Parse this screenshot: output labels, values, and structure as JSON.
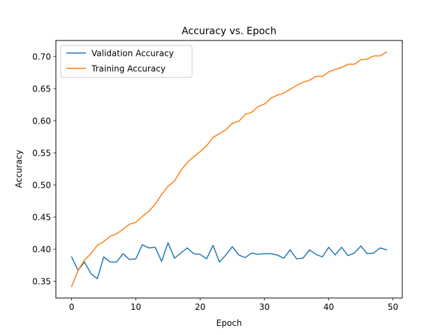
{
  "chart_data": {
    "type": "line",
    "title": "Accuracy vs. Epoch",
    "xlabel": "Epoch",
    "ylabel": "Accuracy",
    "xlim": [
      -2.45,
      51.45
    ],
    "ylim": [
      0.324,
      0.725
    ],
    "xticks": [
      0,
      10,
      20,
      30,
      40,
      50
    ],
    "yticks": [
      0.35,
      0.4,
      0.45,
      0.5,
      0.55,
      0.6,
      0.65,
      0.7
    ],
    "grid": false,
    "legend_position": "upper left",
    "x": [
      0,
      1,
      2,
      3,
      4,
      5,
      6,
      7,
      8,
      9,
      10,
      11,
      12,
      13,
      14,
      15,
      16,
      17,
      18,
      19,
      20,
      21,
      22,
      23,
      24,
      25,
      26,
      27,
      28,
      29,
      30,
      31,
      32,
      33,
      34,
      35,
      36,
      37,
      38,
      39,
      40,
      41,
      42,
      43,
      44,
      45,
      46,
      47,
      48,
      49
    ],
    "series": [
      {
        "name": "Validation Accuracy",
        "color": "#1f77b4",
        "values": [
          0.388,
          0.367,
          0.38,
          0.362,
          0.354,
          0.388,
          0.38,
          0.38,
          0.393,
          0.384,
          0.385,
          0.407,
          0.402,
          0.403,
          0.381,
          0.41,
          0.386,
          0.394,
          0.402,
          0.393,
          0.392,
          0.385,
          0.406,
          0.38,
          0.391,
          0.404,
          0.391,
          0.387,
          0.394,
          0.392,
          0.393,
          0.393,
          0.391,
          0.386,
          0.399,
          0.385,
          0.386,
          0.399,
          0.392,
          0.388,
          0.403,
          0.391,
          0.403,
          0.39,
          0.394,
          0.405,
          0.393,
          0.394,
          0.402,
          0.399
        ]
      },
      {
        "name": "Training Accuracy",
        "color": "#ff7f0e",
        "values": [
          0.342,
          0.367,
          0.383,
          0.393,
          0.406,
          0.412,
          0.42,
          0.424,
          0.431,
          0.439,
          0.442,
          0.451,
          0.459,
          0.47,
          0.485,
          0.498,
          0.506,
          0.523,
          0.535,
          0.544,
          0.552,
          0.561,
          0.574,
          0.58,
          0.586,
          0.596,
          0.599,
          0.61,
          0.613,
          0.622,
          0.626,
          0.635,
          0.64,
          0.643,
          0.649,
          0.655,
          0.66,
          0.663,
          0.669,
          0.669,
          0.676,
          0.68,
          0.683,
          0.688,
          0.688,
          0.695,
          0.696,
          0.701,
          0.701,
          0.707
        ]
      }
    ]
  }
}
